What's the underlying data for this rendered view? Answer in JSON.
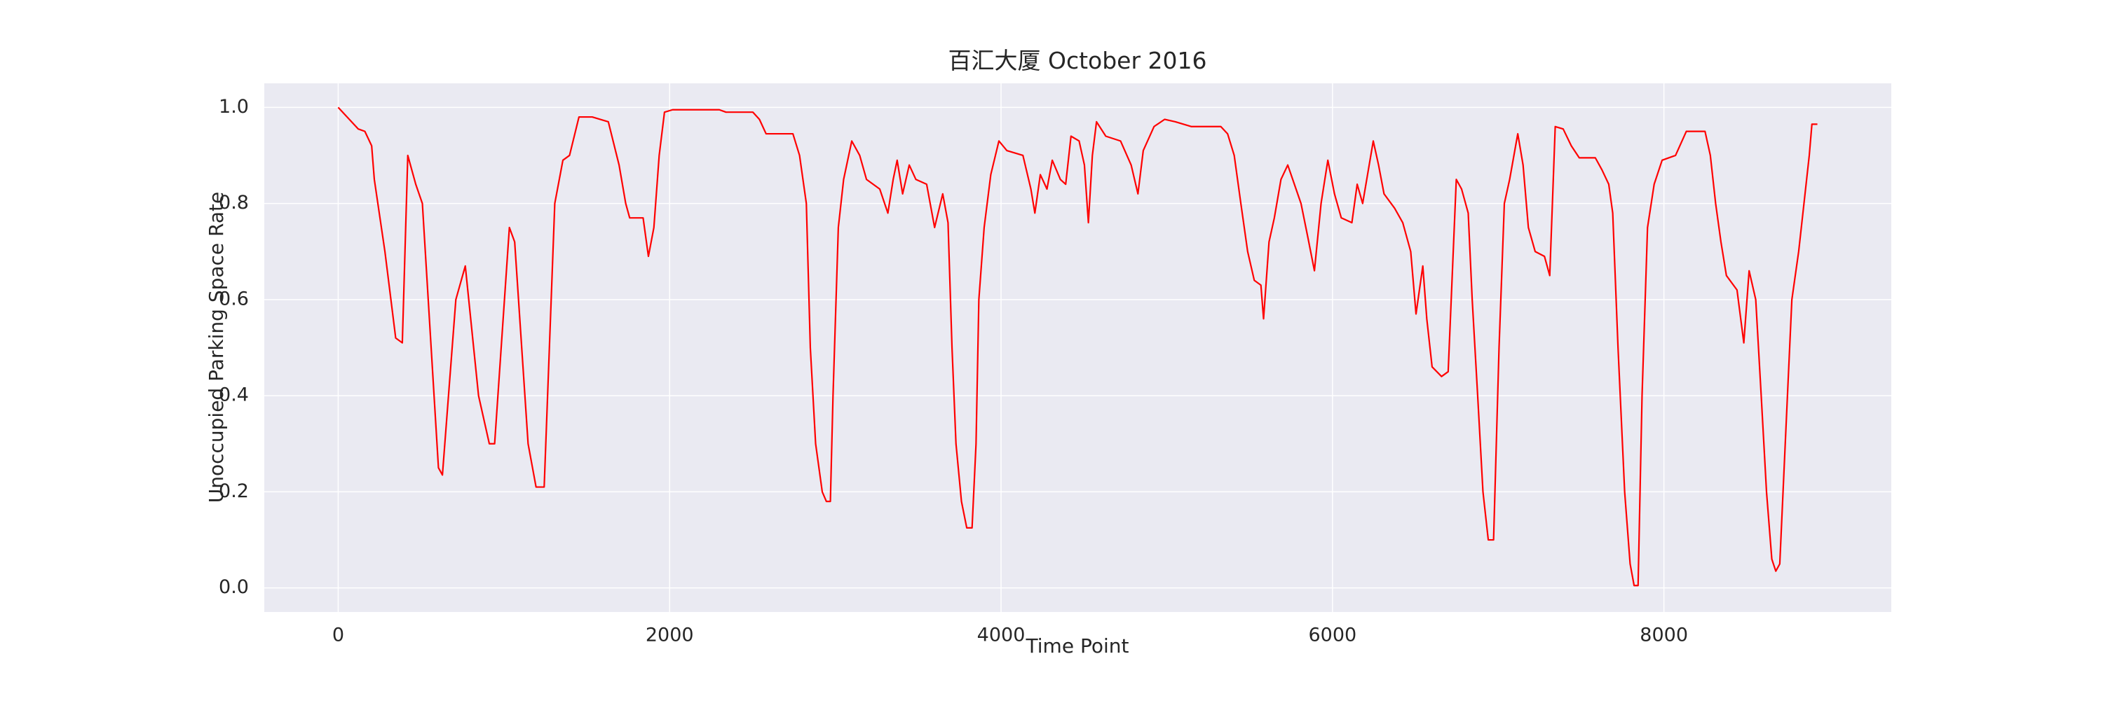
{
  "chart_data": {
    "type": "line",
    "title": "百汇大厦 October 2016",
    "xlabel": "Time Point",
    "ylabel": "Unoccupied Parking Space Rate",
    "xlim": [
      -446,
      9372
    ],
    "ylim": [
      -0.05,
      1.05
    ],
    "xticks": [
      0,
      2000,
      4000,
      6000,
      8000
    ],
    "yticks": [
      {
        "value": 0,
        "label": "0.0"
      },
      0.2,
      0.4,
      0.6,
      0.8,
      {
        "value": 1,
        "label": "1.0"
      }
    ],
    "grid": true,
    "series": [
      {
        "name": "百汇大厦",
        "color": "#ff0000",
        "x": [
          0,
          121,
          161,
          202,
          218,
          282,
          347,
          387,
          420,
          468,
          508,
          605,
          629,
          710,
          767,
          847,
          912,
          944,
          1033,
          1065,
          1146,
          1194,
          1243,
          1307,
          1356,
          1396,
          1453,
          1533,
          1630,
          1695,
          1735,
          1759,
          1840,
          1872,
          1905,
          1937,
          1969,
          2018,
          2300,
          2340,
          2502,
          2542,
          2582,
          2744,
          2784,
          2825,
          2849,
          2881,
          2921,
          2946,
          2970,
          2986,
          3018,
          3050,
          3099,
          3147,
          3188,
          3268,
          3317,
          3349,
          3373,
          3406,
          3446,
          3486,
          3551,
          3599,
          3648,
          3680,
          3704,
          3728,
          3761,
          3793,
          3825,
          3849,
          3866,
          3898,
          3938,
          3987,
          4035,
          4132,
          4180,
          4204,
          4237,
          4277,
          4309,
          4358,
          4390,
          4422,
          4471,
          4503,
          4527,
          4551,
          4576,
          4632,
          4721,
          4785,
          4826,
          4858,
          4923,
          4987,
          5052,
          5149,
          5326,
          5367,
          5407,
          5447,
          5488,
          5528,
          5568,
          5584,
          5617,
          5649,
          5689,
          5730,
          5810,
          5851,
          5891,
          5931,
          5972,
          6012,
          6053,
          6117,
          6149,
          6182,
          6246,
          6278,
          6311,
          6375,
          6424,
          6472,
          6504,
          6545,
          6569,
          6601,
          6658,
          6698,
          6747,
          6779,
          6819,
          6843,
          6876,
          6908,
          6940,
          6972,
          7005,
          7037,
          7069,
          7118,
          7150,
          7182,
          7223,
          7279,
          7311,
          7344,
          7392,
          7441,
          7489,
          7586,
          7626,
          7667,
          7691,
          7723,
          7763,
          7796,
          7820,
          7844,
          7868,
          7901,
          7941,
          7989,
          8070,
          8135,
          8248,
          8280,
          8312,
          8344,
          8377,
          8441,
          8482,
          8514,
          8554,
          8587,
          8619,
          8651,
          8675,
          8699,
          8732,
          8772,
          8813,
          8845,
          8877,
          8893,
          8926
        ],
        "values": [
          1.0,
          0.955,
          0.95,
          0.92,
          0.85,
          0.7,
          0.52,
          0.51,
          0.9,
          0.84,
          0.8,
          0.25,
          0.235,
          0.6,
          0.67,
          0.4,
          0.3,
          0.3,
          0.75,
          0.72,
          0.3,
          0.21,
          0.21,
          0.8,
          0.89,
          0.9,
          0.98,
          0.98,
          0.97,
          0.88,
          0.8,
          0.77,
          0.77,
          0.69,
          0.75,
          0.9,
          0.99,
          0.995,
          0.995,
          0.99,
          0.99,
          0.975,
          0.945,
          0.945,
          0.9,
          0.8,
          0.5,
          0.3,
          0.2,
          0.18,
          0.18,
          0.4,
          0.75,
          0.85,
          0.93,
          0.9,
          0.85,
          0.83,
          0.78,
          0.85,
          0.89,
          0.82,
          0.88,
          0.85,
          0.84,
          0.75,
          0.82,
          0.76,
          0.5,
          0.3,
          0.18,
          0.125,
          0.125,
          0.3,
          0.6,
          0.75,
          0.86,
          0.93,
          0.91,
          0.9,
          0.83,
          0.78,
          0.86,
          0.83,
          0.89,
          0.85,
          0.84,
          0.94,
          0.93,
          0.88,
          0.76,
          0.9,
          0.97,
          0.94,
          0.93,
          0.88,
          0.82,
          0.91,
          0.96,
          0.975,
          0.97,
          0.96,
          0.96,
          0.945,
          0.9,
          0.8,
          0.7,
          0.64,
          0.63,
          0.56,
          0.72,
          0.77,
          0.85,
          0.88,
          0.8,
          0.73,
          0.66,
          0.8,
          0.89,
          0.82,
          0.77,
          0.76,
          0.84,
          0.8,
          0.93,
          0.88,
          0.82,
          0.79,
          0.76,
          0.7,
          0.57,
          0.67,
          0.56,
          0.46,
          0.44,
          0.45,
          0.85,
          0.83,
          0.78,
          0.6,
          0.4,
          0.2,
          0.1,
          0.1,
          0.5,
          0.8,
          0.85,
          0.945,
          0.88,
          0.75,
          0.7,
          0.69,
          0.65,
          0.96,
          0.955,
          0.92,
          0.895,
          0.895,
          0.87,
          0.84,
          0.78,
          0.5,
          0.2,
          0.05,
          0.005,
          0.005,
          0.4,
          0.75,
          0.84,
          0.89,
          0.9,
          0.95,
          0.95,
          0.9,
          0.8,
          0.72,
          0.65,
          0.62,
          0.51,
          0.66,
          0.6,
          0.4,
          0.2,
          0.06,
          0.035,
          0.05,
          0.3,
          0.6,
          0.7,
          0.8,
          0.9,
          0.965,
          0.965
        ]
      }
    ]
  }
}
